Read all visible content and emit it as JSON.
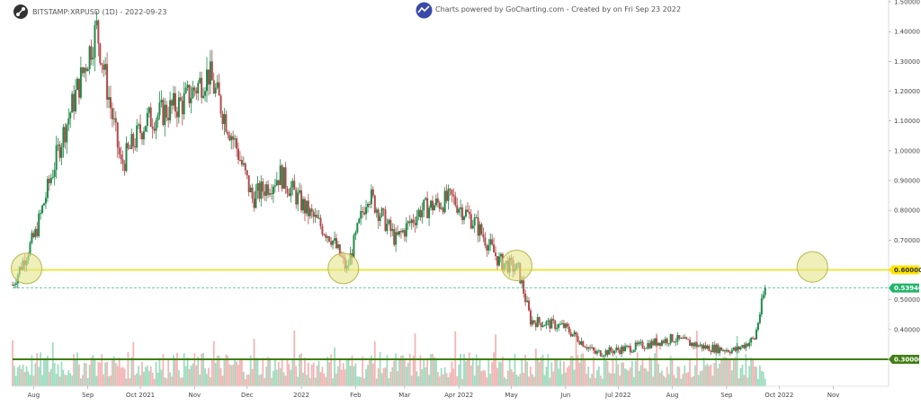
{
  "header": {
    "symbol": "BITSTAMP:XRPUSD (1D) - 2022-09-23",
    "credit": "Charts powered by GoCharting.com - Created by  on Fri Sep 23 2022"
  },
  "icons": {
    "app_logo": "gocharting-logo-icon",
    "brand_logo": "gocharting-badge-icon"
  },
  "colors": {
    "up": "#1e8a4a",
    "down": "#b24a4a",
    "level_yellow": "#e6e600",
    "level_green": "#3f7f14",
    "price_line": "#3fbf8f",
    "circle_fill": "#e4e48c",
    "circle_stroke": "#b6b64a",
    "vol_up": "#9fdcbf",
    "vol_down": "#f3b5b5"
  },
  "chart_data": {
    "type": "candlestick",
    "title": "BITSTAMP:XRPUSD (1D) - 2022-09-23",
    "ylim": [
      0.2,
      1.5
    ],
    "y_ticks": [
      "1.50000",
      "1.40000",
      "1.30000",
      "1.20000",
      "1.10000",
      "1.00000",
      "0.90000",
      "0.80000",
      "0.70000",
      "0.60000",
      "0.50000",
      "0.40000",
      "0.30000"
    ],
    "x_ticks": [
      "Aug",
      "Sep",
      "Oct 2021",
      "Nov",
      "Dec",
      "2022",
      "Feb",
      "Mar",
      "Apr 2022",
      "May",
      "Jun",
      "Jul 2022",
      "Aug",
      "Sep",
      "Oct 2022",
      "Nov"
    ],
    "series": [
      {
        "dates": [
          "2021-07-20",
          "2021-08-02",
          "2021-08-16",
          "2021-09-06",
          "2021-09-20",
          "2021-10-04",
          "2021-10-25",
          "2021-11-09",
          "2021-11-25",
          "2021-12-04",
          "2021-12-20",
          "2022-01-04",
          "2022-01-18",
          "2022-01-27",
          "2022-02-08",
          "2022-02-24",
          "2022-03-10",
          "2022-03-28",
          "2022-04-10",
          "2022-04-24",
          "2022-05-05",
          "2022-05-12",
          "2022-05-31",
          "2022-06-18",
          "2022-07-10",
          "2022-08-01",
          "2022-08-20",
          "2022-09-06",
          "2022-09-17",
          "2022-09-23"
        ],
        "close": [
          0.55,
          0.72,
          1.02,
          1.41,
          0.95,
          1.1,
          1.16,
          1.26,
          1.01,
          0.84,
          0.92,
          0.8,
          0.71,
          0.6,
          0.86,
          0.7,
          0.8,
          0.84,
          0.76,
          0.63,
          0.6,
          0.43,
          0.41,
          0.32,
          0.34,
          0.37,
          0.34,
          0.33,
          0.37,
          0.54
        ]
      }
    ],
    "horizontal_levels": [
      {
        "value": 0.6,
        "label": "0.60000"
      },
      {
        "value": 0.3,
        "label": "0.30000"
      }
    ],
    "last_price": {
      "value": 0.5394,
      "label": "0.53940"
    },
    "annotations": [
      "circle at 0.60 level (Jul 2021)",
      "circle at 0.60 level (Jan 2022)",
      "circle at 0.60 level (May 2022)",
      "circle at 0.60 level (Oct 2022)"
    ],
    "grid": false,
    "legend": "none"
  }
}
